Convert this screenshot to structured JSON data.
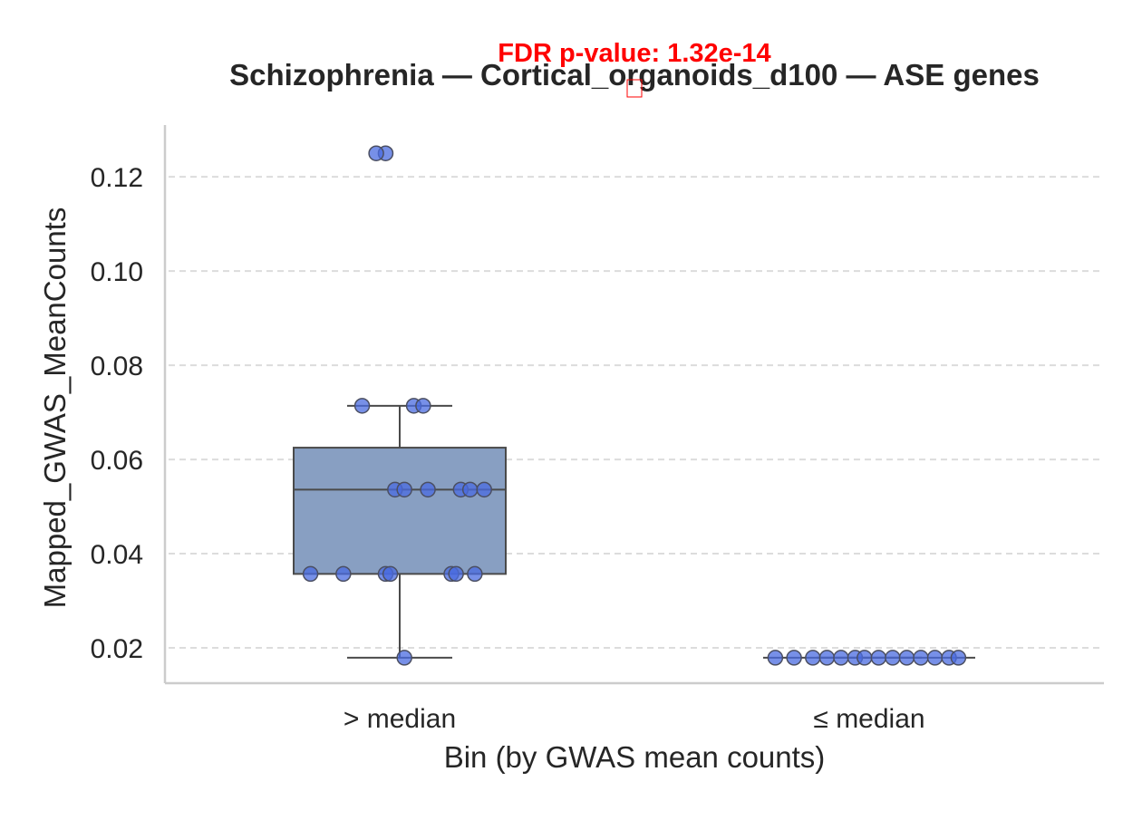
{
  "chart_data": {
    "type": "box",
    "title": "Schizophrenia — Cortical_organoids_d100 — ASE genes",
    "annotation": "FDR p-value: 1.32e-14",
    "xlabel": "Bin (by GWAS mean counts)",
    "ylabel": "Mapped_GWAS_MeanCounts",
    "categories": [
      "> median",
      "≤ median"
    ],
    "ylim": [
      0.0125,
      0.131
    ],
    "yticks": [
      0.02,
      0.04,
      0.06,
      0.08,
      0.1,
      0.12
    ],
    "ytick_labels": [
      "0.02",
      "0.04",
      "0.06",
      "0.08",
      "0.10",
      "0.12"
    ],
    "grid": "y-dashed",
    "boxes": [
      {
        "category": "> median",
        "whisker_low": 0.0179,
        "q1": 0.0357,
        "median": 0.0536,
        "q3": 0.0625,
        "whisker_high": 0.0714,
        "outliers": [
          0.125
        ]
      },
      {
        "category": "≤ median",
        "whisker_low": 0.0179,
        "q1": 0.0179,
        "median": 0.0179,
        "q3": 0.0179,
        "whisker_high": 0.0179,
        "outliers": []
      }
    ],
    "points": [
      {
        "category": "> median",
        "y": 0.125,
        "jitter": -0.03
      },
      {
        "category": "> median",
        "y": 0.125,
        "jitter": -0.05
      },
      {
        "category": "> median",
        "y": 0.0714,
        "jitter": -0.08
      },
      {
        "category": "> median",
        "y": 0.0714,
        "jitter": 0.03
      },
      {
        "category": "> median",
        "y": 0.0714,
        "jitter": 0.05
      },
      {
        "category": "> median",
        "y": 0.0536,
        "jitter": -0.01
      },
      {
        "category": "> median",
        "y": 0.0536,
        "jitter": 0.01
      },
      {
        "category": "> median",
        "y": 0.0536,
        "jitter": 0.13
      },
      {
        "category": "> median",
        "y": 0.0536,
        "jitter": 0.15
      },
      {
        "category": "> median",
        "y": 0.0536,
        "jitter": 0.06
      },
      {
        "category": "> median",
        "y": 0.0536,
        "jitter": 0.18
      },
      {
        "category": "> median",
        "y": 0.0357,
        "jitter": -0.19
      },
      {
        "category": "> median",
        "y": 0.0357,
        "jitter": -0.12
      },
      {
        "category": "> median",
        "y": 0.0357,
        "jitter": -0.03
      },
      {
        "category": "> median",
        "y": 0.0357,
        "jitter": -0.02
      },
      {
        "category": "> median",
        "y": 0.0357,
        "jitter": 0.11
      },
      {
        "category": "> median",
        "y": 0.0357,
        "jitter": 0.12
      },
      {
        "category": "> median",
        "y": 0.0357,
        "jitter": 0.16
      },
      {
        "category": "> median",
        "y": 0.0179,
        "jitter": 0.01
      },
      {
        "category": "≤ median",
        "y": 0.0179,
        "jitter": -0.2
      },
      {
        "category": "≤ median",
        "y": 0.0179,
        "jitter": -0.16
      },
      {
        "category": "≤ median",
        "y": 0.0179,
        "jitter": -0.12
      },
      {
        "category": "≤ median",
        "y": 0.0179,
        "jitter": -0.09
      },
      {
        "category": "≤ median",
        "y": 0.0179,
        "jitter": -0.06
      },
      {
        "category": "≤ median",
        "y": 0.0179,
        "jitter": -0.03
      },
      {
        "category": "≤ median",
        "y": 0.0179,
        "jitter": -0.01
      },
      {
        "category": "≤ median",
        "y": 0.0179,
        "jitter": 0.02
      },
      {
        "category": "≤ median",
        "y": 0.0179,
        "jitter": 0.05
      },
      {
        "category": "≤ median",
        "y": 0.0179,
        "jitter": 0.08
      },
      {
        "category": "≤ median",
        "y": 0.0179,
        "jitter": 0.11
      },
      {
        "category": "≤ median",
        "y": 0.0179,
        "jitter": 0.14
      },
      {
        "category": "≤ median",
        "y": 0.0179,
        "jitter": 0.17
      },
      {
        "category": "≤ median",
        "y": 0.0179,
        "jitter": 0.19
      }
    ],
    "colors": {
      "box_fill": "#889fc2",
      "box_edge": "#4a4a4a",
      "point_fill": "#4a6be0",
      "point_edge": "#4b4f62",
      "grid": "#dcdcdc",
      "axis": "#cccccc",
      "text": "#262626",
      "annotation": "#ff0000"
    }
  }
}
